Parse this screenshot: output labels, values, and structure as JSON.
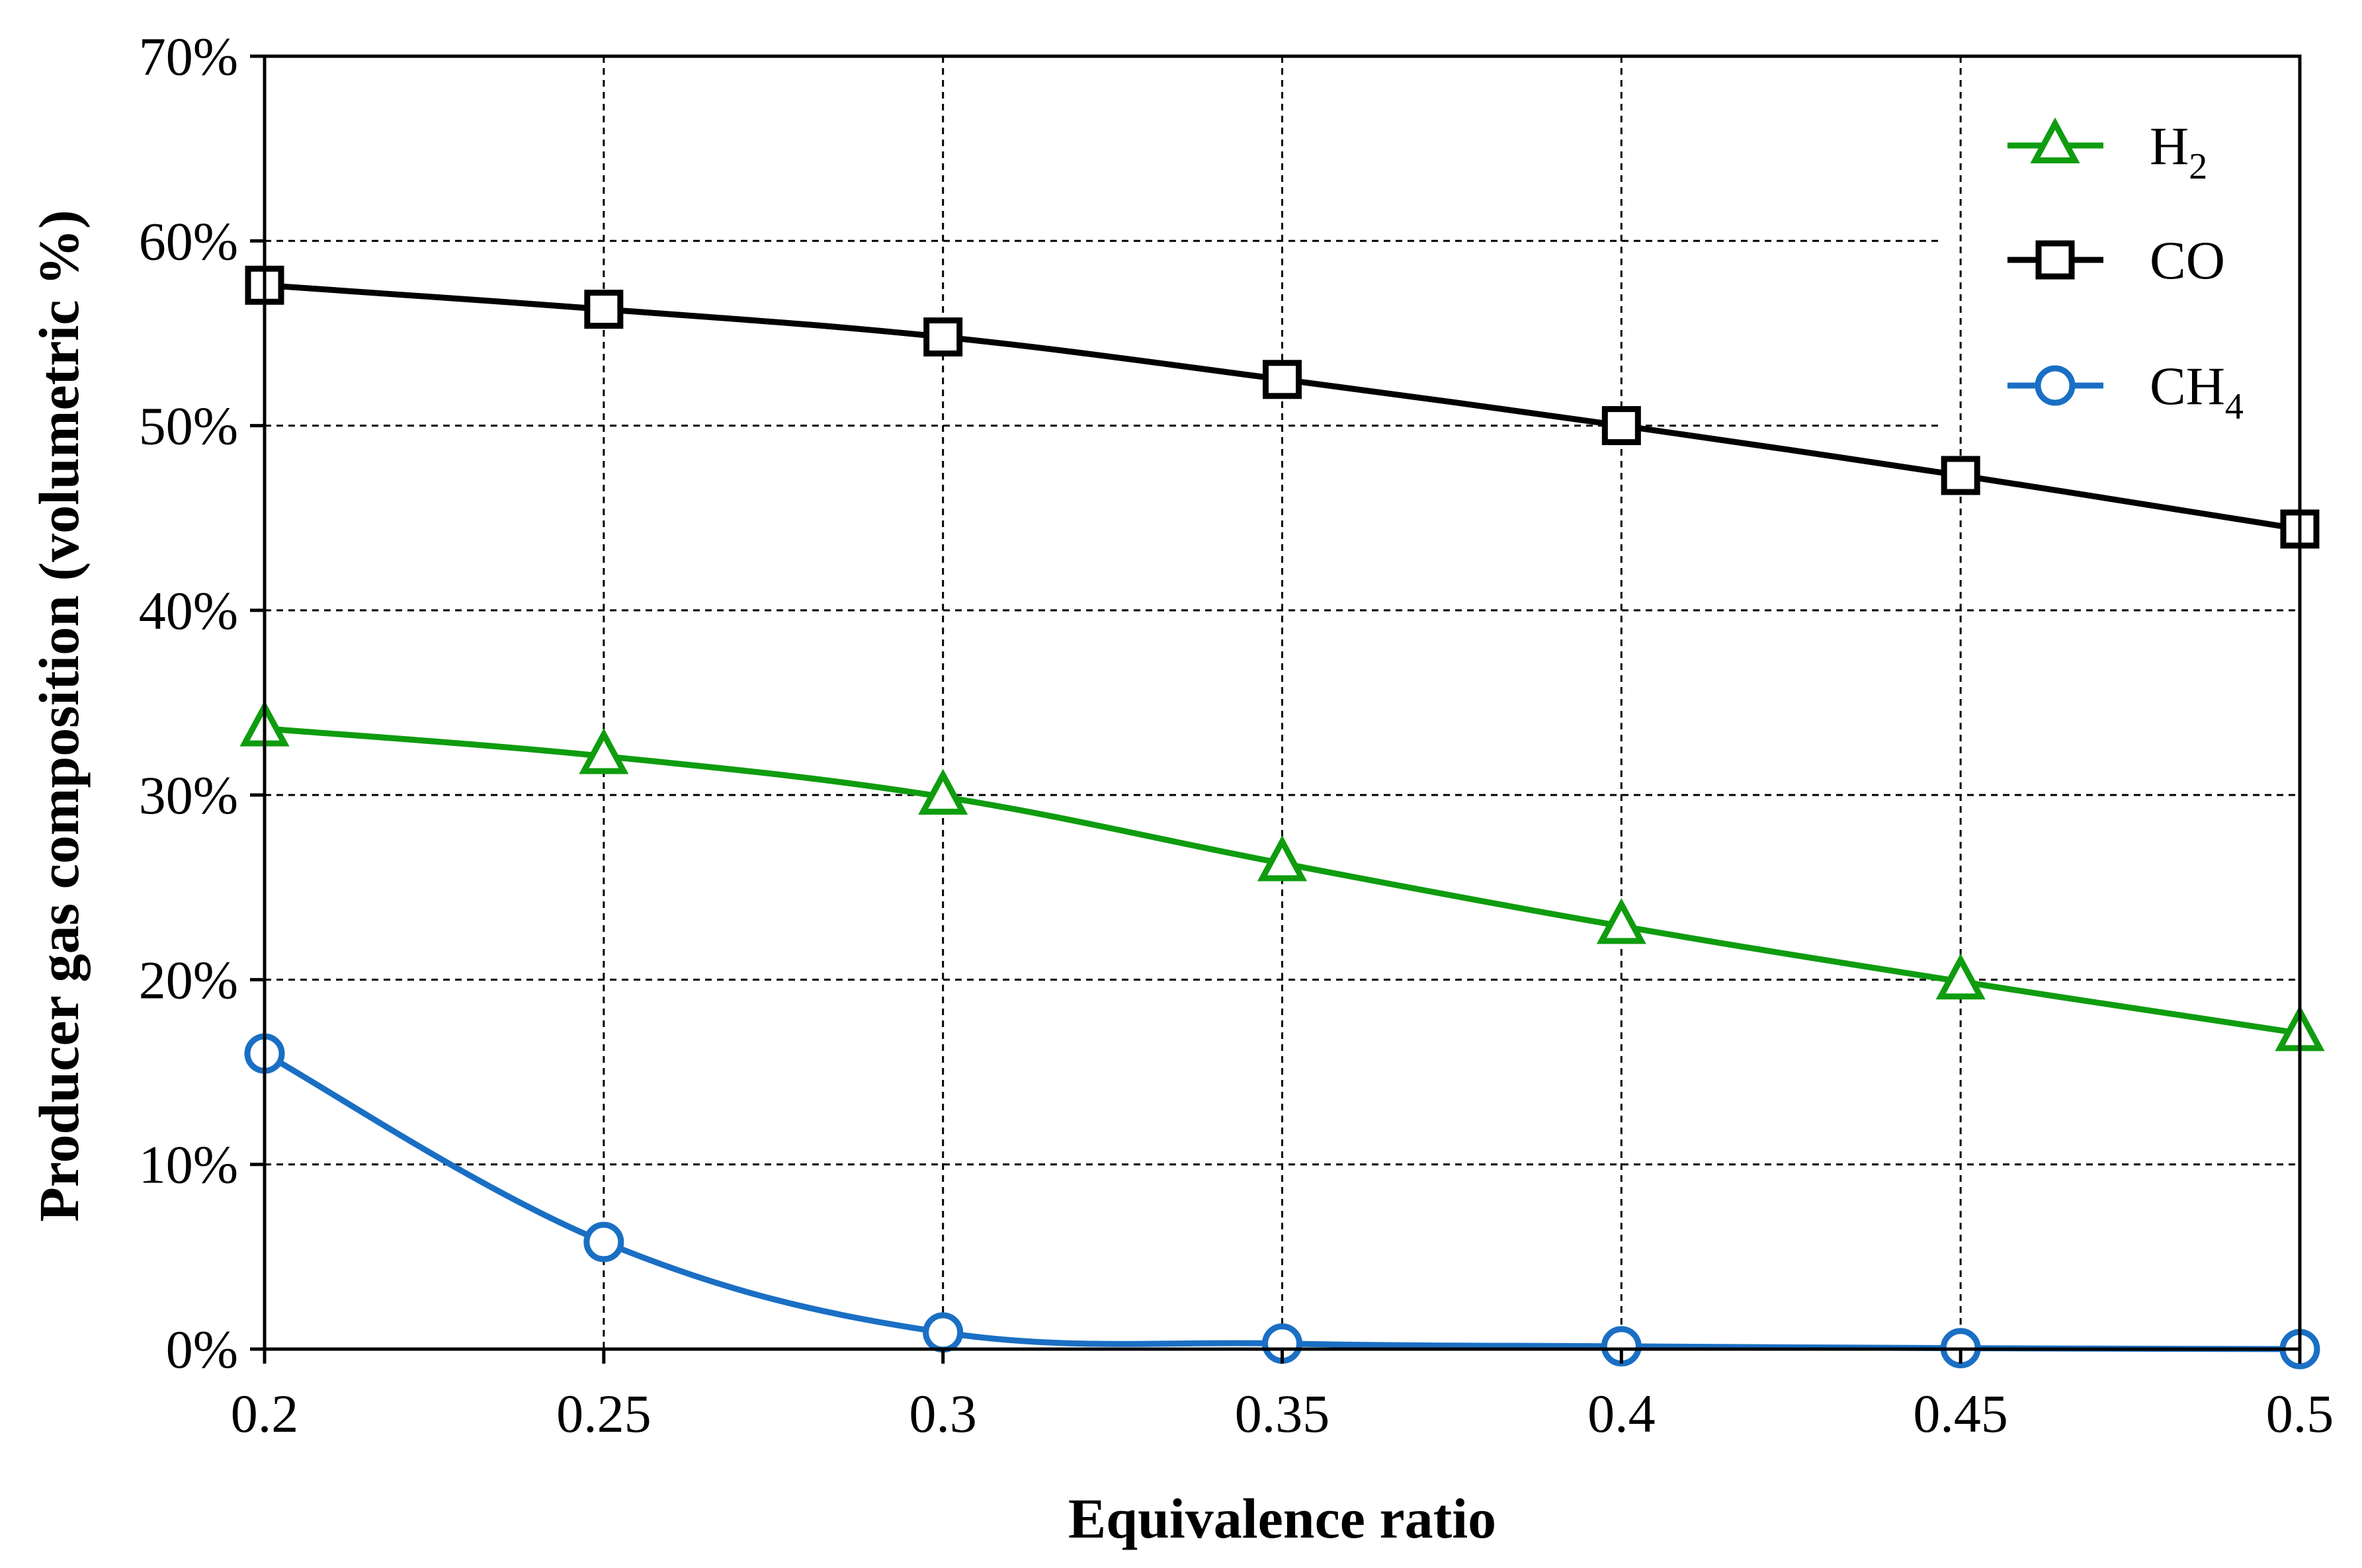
{
  "chart_data": {
    "type": "line",
    "title": "",
    "xlabel": "Equivalence ratio",
    "ylabel": "Producer gas composition (volumetric %)",
    "xlim": [
      0.2,
      0.5
    ],
    "ylim": [
      0,
      70
    ],
    "grid": true,
    "legend_position": "top-right",
    "x": [
      0.2,
      0.25,
      0.3,
      0.35,
      0.4,
      0.45,
      0.5
    ],
    "x_tick_labels": [
      "0.2",
      "0.25",
      "0.3",
      "0.35",
      "0.4",
      "0.45",
      "0.5"
    ],
    "y_ticks": [
      0,
      10,
      20,
      30,
      40,
      50,
      60,
      70
    ],
    "y_tick_labels": [
      "0%",
      "10%",
      "20%",
      "30%",
      "40%",
      "50%",
      "60%",
      "70%"
    ],
    "series": [
      {
        "name": "H2",
        "label_main": "H",
        "label_sub": "2",
        "color": "#0f9c0f",
        "marker": "triangle",
        "values": [
          33.6,
          32.1,
          29.9,
          26.3,
          22.9,
          19.9,
          17.1
        ]
      },
      {
        "name": "CO",
        "label_main": "CO",
        "label_sub": "",
        "color": "#000000",
        "marker": "square",
        "values": [
          57.6,
          56.3,
          54.8,
          52.5,
          50.0,
          47.3,
          44.4
        ]
      },
      {
        "name": "CH4",
        "label_main": "CH",
        "label_sub": "4",
        "color": "#1a6fc4",
        "marker": "circle",
        "values": [
          16.0,
          5.8,
          0.9,
          0.3,
          0.15,
          0.05,
          0.0
        ]
      }
    ]
  }
}
